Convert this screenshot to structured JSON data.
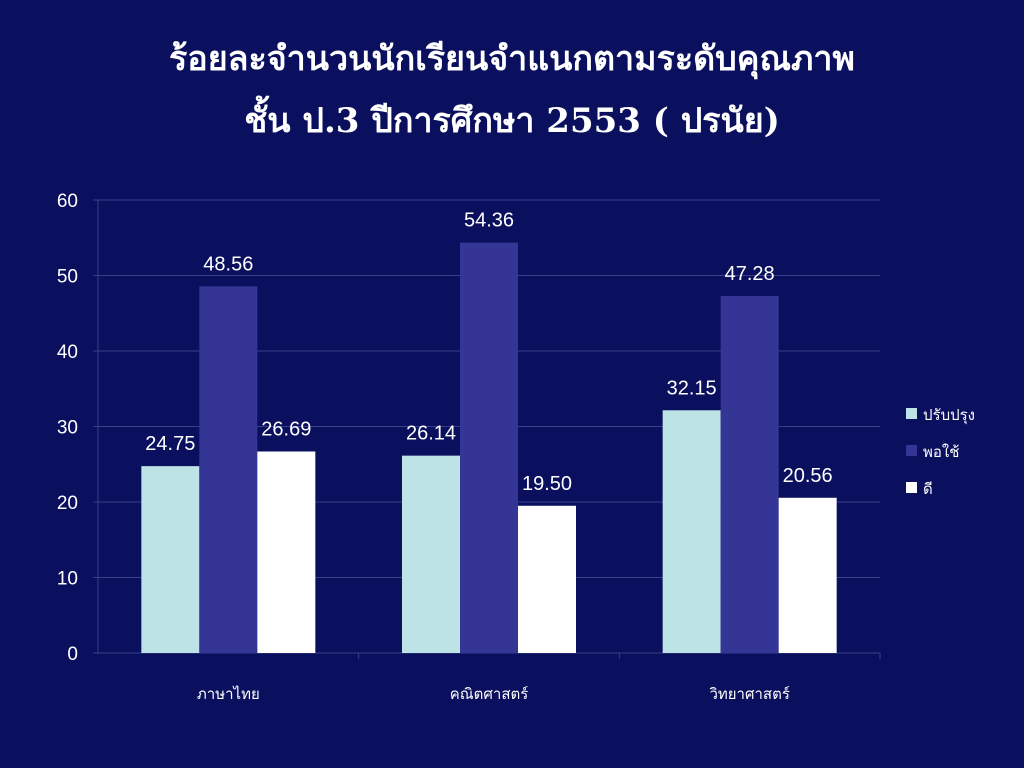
{
  "title": {
    "line1": "ร้อยละจำนวนนักเรียนจำแนกตามระดับคุณภาพ",
    "line2": "ชั้น  ป.3 ปีการศึกษา  2553 ( ปรนัย)"
  },
  "colors": {
    "background": "#0a0f5e",
    "grid": "#3a3f8a",
    "text": "#ffffff"
  },
  "chart_data": {
    "type": "bar",
    "categories": [
      "ภาษาไทย",
      "คณิตศาสตร์",
      "วิทยาศาสตร์"
    ],
    "series": [
      {
        "name": "ปรับปรุง",
        "color": "#bde3e6",
        "values": [
          24.75,
          26.14,
          32.15
        ],
        "labels": [
          "24.75",
          "26.14",
          "32.15"
        ]
      },
      {
        "name": "พอใช้",
        "color": "#353595",
        "values": [
          48.56,
          54.36,
          47.28
        ],
        "labels": [
          "48.56",
          "54.36",
          "47.28"
        ]
      },
      {
        "name": "ดี",
        "color": "#ffffff",
        "values": [
          26.69,
          19.5,
          20.56
        ],
        "labels": [
          "26.69",
          "19.50",
          "20.56"
        ]
      }
    ],
    "ylim": [
      0,
      60
    ],
    "yticks": [
      0,
      10,
      20,
      30,
      40,
      50,
      60
    ],
    "grid": true,
    "legend": "right"
  }
}
